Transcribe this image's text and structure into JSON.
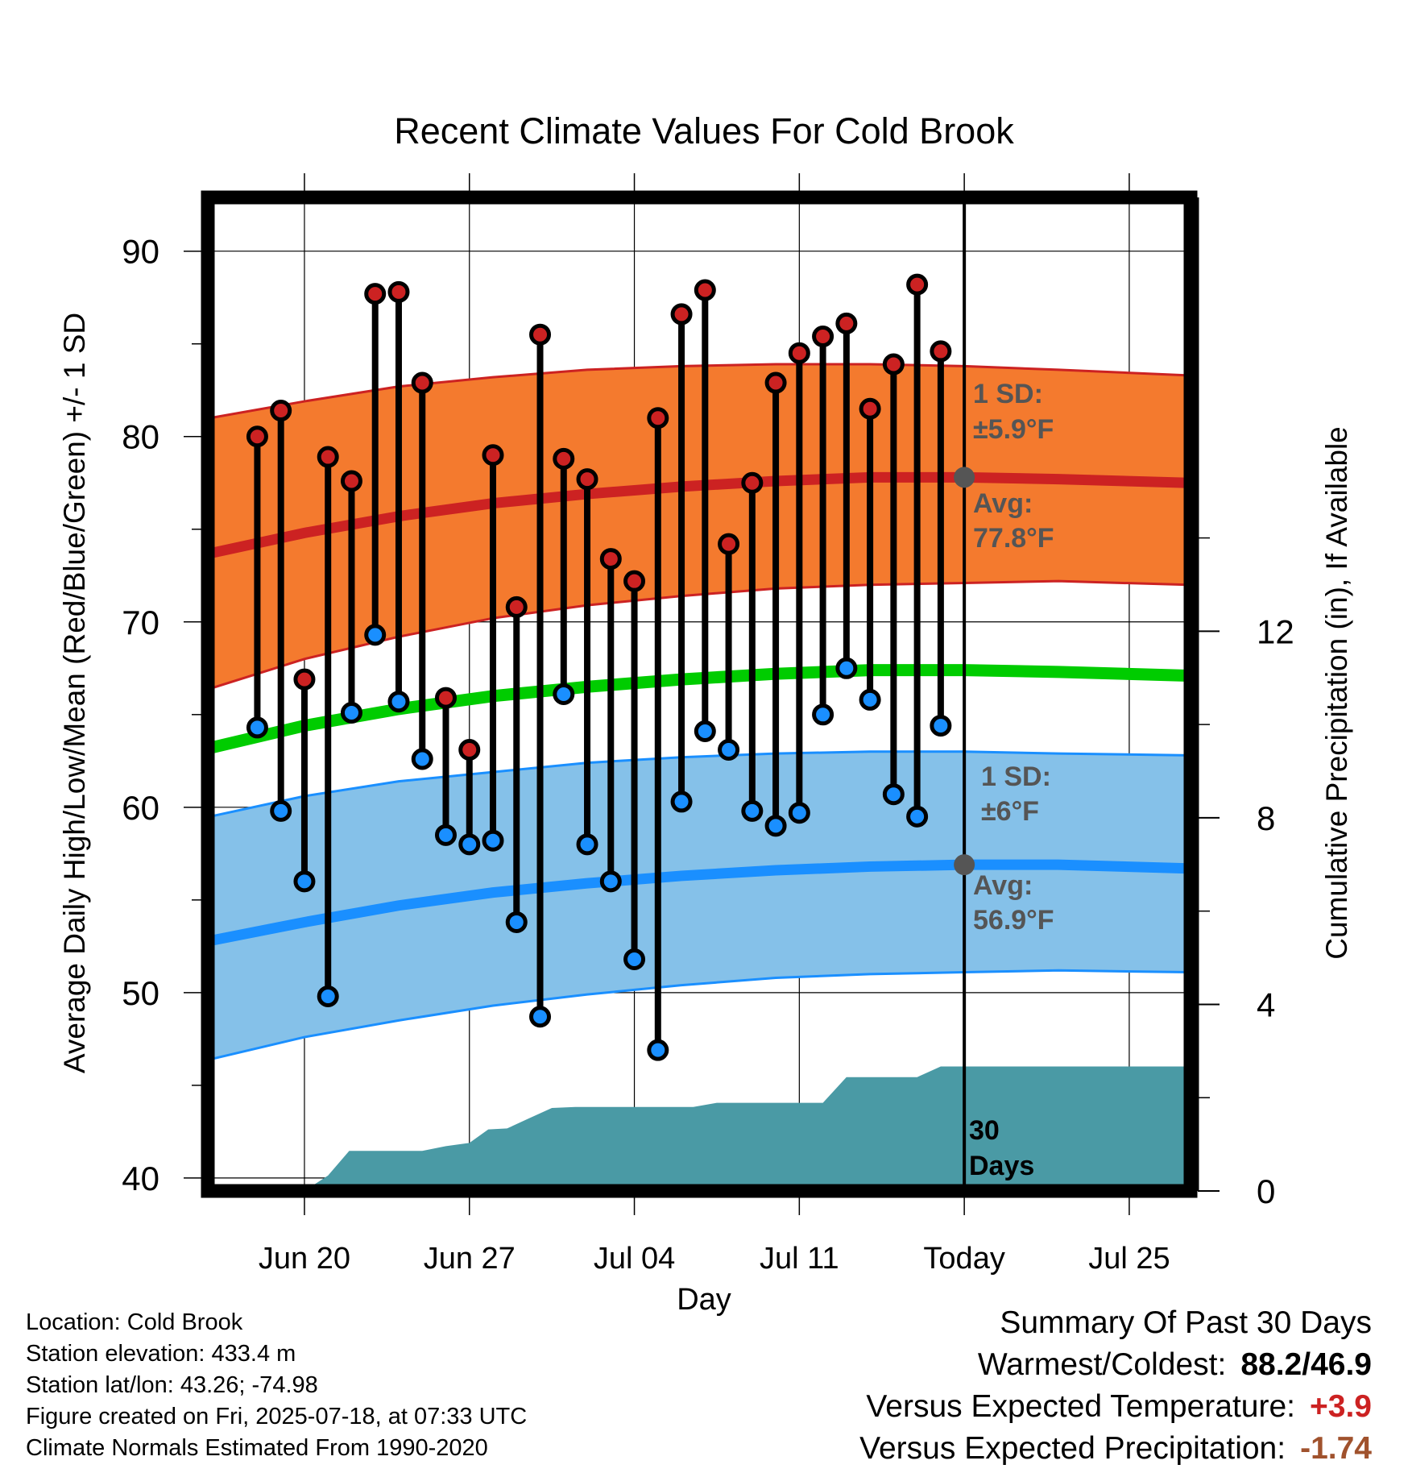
{
  "colors": {
    "high_dot": "#cc2222",
    "low_dot": "#1a8fff",
    "high_band": "#f47a2e",
    "high_avg_line": "#cc2222",
    "low_band": "#85c1e9",
    "low_avg_line": "#1a8fff",
    "mean_line": "#00cc00",
    "precip_fill": "#4a9aa5",
    "annotation_text": "#555555",
    "warm_anomaly": "#cc2222",
    "precip_anomaly": "#a0522d"
  },
  "chart_data": {
    "type": "line",
    "title": "Recent Climate Values For Cold Brook",
    "xlabel": "Day",
    "ylabel_left": "Average Daily High/Low/Mean (Red/Blue/Green) +/- 1 SD",
    "ylabel_right": "Cumulative Precipitation (in), If Available",
    "x_range_days": [
      -32.1,
      9.6
    ],
    "y_left_range": [
      39.3,
      92.9
    ],
    "y_right_range": [
      0,
      21.3
    ],
    "x_ticks": [
      {
        "day": -28,
        "label": "Jun 20"
      },
      {
        "day": -21,
        "label": "Jun 27"
      },
      {
        "day": -14,
        "label": "Jul 04"
      },
      {
        "day": -7,
        "label": "Jul 11"
      },
      {
        "day": 0,
        "label": "Today"
      },
      {
        "day": 7,
        "label": "Jul 25"
      }
    ],
    "y_left_ticks": [
      40,
      50,
      60,
      70,
      80,
      90
    ],
    "y_right_ticks": [
      0,
      4,
      8,
      12
    ],
    "grid": true,
    "observations": {
      "days": [
        -30,
        -29,
        -28,
        -27,
        -26,
        -25,
        -24,
        -23,
        -22,
        -21,
        -20,
        -19,
        -18,
        -17,
        -16,
        -15,
        -14,
        -13,
        -12,
        -11,
        -10,
        -9,
        -8,
        -7,
        -6,
        -5,
        -4,
        -3,
        -2,
        -1
      ],
      "high": [
        80.0,
        81.4,
        66.9,
        78.9,
        77.6,
        87.7,
        87.8,
        82.9,
        65.9,
        63.1,
        79.0,
        70.8,
        85.5,
        78.8,
        77.7,
        73.4,
        72.2,
        81.0,
        86.6,
        87.9,
        74.2,
        77.5,
        82.9,
        84.5,
        85.4,
        86.1,
        81.5,
        83.9,
        88.2,
        84.6
      ],
      "low": [
        64.3,
        59.8,
        56.0,
        49.8,
        65.1,
        69.3,
        65.7,
        62.6,
        58.5,
        58.0,
        58.2,
        53.8,
        48.7,
        66.1,
        58.0,
        56.0,
        51.8,
        46.9,
        60.3,
        64.1,
        63.1,
        59.8,
        59.0,
        59.7,
        65.0,
        67.5,
        65.8,
        60.7,
        59.5,
        64.4
      ]
    },
    "normals": {
      "days": [
        -32,
        -28,
        -24,
        -20,
        -16,
        -12,
        -8,
        -4,
        0,
        4,
        9.5
      ],
      "avg_high": [
        73.7,
        74.8,
        75.7,
        76.4,
        76.9,
        77.3,
        77.6,
        77.8,
        77.8,
        77.7,
        77.5
      ],
      "high_sd_upper": [
        81.0,
        81.9,
        82.7,
        83.2,
        83.6,
        83.8,
        83.9,
        83.9,
        83.8,
        83.6,
        83.3
      ],
      "high_sd_lower": [
        66.4,
        68.0,
        69.2,
        70.2,
        70.9,
        71.4,
        71.8,
        72.0,
        72.1,
        72.2,
        72.0
      ],
      "avg_mean": [
        63.2,
        64.4,
        65.3,
        66.0,
        66.5,
        66.9,
        67.2,
        67.4,
        67.4,
        67.3,
        67.1
      ],
      "avg_low": [
        52.8,
        53.8,
        54.7,
        55.4,
        55.9,
        56.3,
        56.6,
        56.8,
        56.9,
        56.9,
        56.7
      ],
      "low_sd_upper": [
        59.5,
        60.6,
        61.4,
        61.9,
        62.4,
        62.7,
        62.9,
        63.0,
        63.0,
        62.9,
        62.8
      ],
      "low_sd_lower": [
        46.4,
        47.6,
        48.5,
        49.3,
        49.9,
        50.4,
        50.8,
        51.0,
        51.1,
        51.2,
        51.1
      ]
    },
    "precipitation": {
      "days": [
        -28.9,
        -28.0,
        -27.0,
        -26.1,
        -25,
        -24,
        -23,
        -22,
        -21,
        -20.2,
        -19.4,
        -18.5,
        -17.5,
        -16.5,
        -15.5,
        -14.5,
        -13.5,
        -12.5,
        -11.5,
        -10.5,
        -9.5,
        -8.5,
        -7.5,
        -6.8,
        -6.0,
        -5.0,
        -4.0,
        -3.0,
        -2.0,
        -1.0,
        0.0,
        9.5
      ],
      "cumulative": [
        0,
        0,
        0.33,
        0.86,
        0.86,
        0.86,
        0.86,
        0.96,
        1.03,
        1.32,
        1.34,
        1.55,
        1.78,
        1.8,
        1.8,
        1.8,
        1.8,
        1.8,
        1.8,
        1.89,
        1.89,
        1.89,
        1.89,
        1.89,
        1.89,
        2.44,
        2.44,
        2.44,
        2.44,
        2.67,
        2.67,
        2.67
      ]
    },
    "annotations": {
      "high_sd_title": "1 SD:",
      "high_sd_value": "±5.9°F",
      "high_avg_title": "Avg:",
      "high_avg_value": "77.8°F",
      "low_sd_title": "1 SD:",
      "low_sd_value": "±6°F",
      "low_avg_title": "Avg:",
      "low_avg_value": "56.9°F",
      "window_line1": "30",
      "window_line2": "Days"
    }
  },
  "footer": {
    "location": "Location: Cold Brook",
    "elevation": "Station elevation: 433.4 m",
    "latlon": "Station lat/lon: 43.26; -74.98",
    "created": "Figure created on Fri, 2025-07-18, at 07:33 UTC",
    "normals": "Climate Normals Estimated From 1990-2020"
  },
  "summary": {
    "title": "Summary Of Past 30 Days",
    "warm_cold_label": "Warmest/Coldest:",
    "warm_cold_value": "88.2/46.9",
    "temp_label": "Versus Expected Temperature:",
    "temp_value": "+3.9",
    "precip_label": "Versus Expected Precipitation:",
    "precip_value": "-1.74"
  }
}
